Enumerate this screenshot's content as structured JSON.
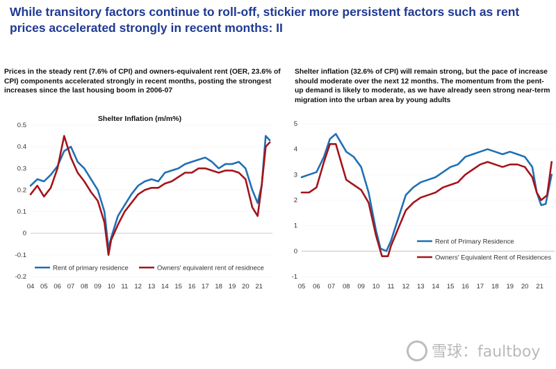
{
  "headline": "While transitory factors continue to roll-off, stickier more persistent factors such as rent prices accelerated strongly in recent months: II",
  "left_panel": {
    "description": "Prices in the steady rent (7.6% of CPI) and owners-equivalent rent (OER, 23.6% of CPI) components accelerated strongly in recent months, posting the strongest increases since the last housing boom in 2006-07"
  },
  "right_panel": {
    "description": "Shelter inflation (32.6% of CPI) will remain strong, but the pace of increase should moderate over the next 12 months. The momentum from the pent-up demand is likely to moderate, as we have already seen strong near-term migration into the urban area by young adults"
  },
  "watermark": "雪球：faultboy",
  "colors": {
    "blue": "#1f6fb5",
    "red": "#a3141b",
    "headline": "#1f3a93"
  },
  "chart_data": [
    {
      "type": "line",
      "title": "Shelter Inflation (m/m%)",
      "xlabel": "",
      "ylabel": "",
      "x_range": [
        2004,
        2022
      ],
      "ylim": [
        -0.2,
        0.5
      ],
      "y_ticks": [
        -0.2,
        -0.1,
        0,
        0.1,
        0.2,
        0.3,
        0.4,
        0.5
      ],
      "x_ticks": [
        "04",
        "05",
        "06",
        "07",
        "08",
        "09",
        "10",
        "11",
        "12",
        "13",
        "14",
        "15",
        "16",
        "17",
        "18",
        "19",
        "20",
        "21"
      ],
      "legend_position": "bottom",
      "series": [
        {
          "name": "Rent of primary residence",
          "color": "#1f6fb5",
          "x": [
            2004.0,
            2004.5,
            2005.0,
            2005.5,
            2006.0,
            2006.5,
            2007.0,
            2007.5,
            2008.0,
            2008.5,
            2009.0,
            2009.5,
            2009.8,
            2010.0,
            2010.5,
            2011.0,
            2011.5,
            2012.0,
            2012.5,
            2013.0,
            2013.5,
            2014.0,
            2014.5,
            2015.0,
            2015.5,
            2016.0,
            2016.5,
            2017.0,
            2017.5,
            2018.0,
            2018.5,
            2019.0,
            2019.5,
            2020.0,
            2020.5,
            2020.9,
            2021.2,
            2021.5,
            2021.8
          ],
          "values": [
            0.22,
            0.25,
            0.24,
            0.27,
            0.31,
            0.38,
            0.4,
            0.33,
            0.3,
            0.25,
            0.2,
            0.1,
            -0.07,
            -0.02,
            0.08,
            0.13,
            0.18,
            0.22,
            0.24,
            0.25,
            0.24,
            0.28,
            0.29,
            0.3,
            0.32,
            0.33,
            0.34,
            0.35,
            0.33,
            0.3,
            0.32,
            0.32,
            0.33,
            0.3,
            0.2,
            0.14,
            0.22,
            0.45,
            0.43
          ]
        },
        {
          "name": "Owners' equivalent rent of residnece",
          "color": "#a3141b",
          "x": [
            2004.0,
            2004.5,
            2005.0,
            2005.5,
            2006.0,
            2006.5,
            2007.0,
            2007.5,
            2008.0,
            2008.5,
            2009.0,
            2009.5,
            2009.8,
            2010.0,
            2010.5,
            2011.0,
            2011.5,
            2012.0,
            2012.5,
            2013.0,
            2013.5,
            2014.0,
            2014.5,
            2015.0,
            2015.5,
            2016.0,
            2016.5,
            2017.0,
            2017.5,
            2018.0,
            2018.5,
            2019.0,
            2019.5,
            2020.0,
            2020.5,
            2020.9,
            2021.2,
            2021.5,
            2021.8
          ],
          "values": [
            0.18,
            0.22,
            0.17,
            0.21,
            0.3,
            0.45,
            0.35,
            0.28,
            0.24,
            0.19,
            0.15,
            0.05,
            -0.1,
            -0.03,
            0.04,
            0.1,
            0.14,
            0.18,
            0.2,
            0.21,
            0.21,
            0.23,
            0.24,
            0.26,
            0.28,
            0.28,
            0.3,
            0.3,
            0.29,
            0.28,
            0.29,
            0.29,
            0.28,
            0.25,
            0.12,
            0.08,
            0.22,
            0.4,
            0.42
          ]
        }
      ]
    },
    {
      "type": "line",
      "title": "",
      "xlabel": "",
      "ylabel": "",
      "x_range": [
        2005,
        2022
      ],
      "ylim": [
        -1,
        5
      ],
      "y_ticks": [
        -1,
        0,
        1,
        2,
        3,
        4,
        5
      ],
      "x_ticks": [
        "05",
        "06",
        "07",
        "08",
        "09",
        "10",
        "11",
        "12",
        "13",
        "14",
        "15",
        "16",
        "17",
        "18",
        "19",
        "20",
        "21"
      ],
      "legend_position": "bottom-right",
      "series": [
        {
          "name": "Rent of Primary Residence",
          "color": "#1f6fb5",
          "x": [
            2005.0,
            2005.5,
            2006.0,
            2006.5,
            2006.9,
            2007.3,
            2007.7,
            2008.0,
            2008.5,
            2009.0,
            2009.5,
            2010.0,
            2010.3,
            2010.7,
            2011.0,
            2011.5,
            2012.0,
            2012.5,
            2013.0,
            2013.5,
            2014.0,
            2014.5,
            2015.0,
            2015.5,
            2016.0,
            2016.5,
            2017.0,
            2017.5,
            2018.0,
            2018.5,
            2019.0,
            2019.5,
            2020.0,
            2020.5,
            2020.8,
            2021.1,
            2021.4,
            2021.8
          ],
          "values": [
            2.9,
            3.0,
            3.1,
            3.7,
            4.4,
            4.6,
            4.2,
            3.9,
            3.7,
            3.3,
            2.3,
            0.8,
            0.1,
            0.0,
            0.4,
            1.3,
            2.2,
            2.5,
            2.7,
            2.8,
            2.9,
            3.1,
            3.3,
            3.4,
            3.7,
            3.8,
            3.9,
            4.0,
            3.9,
            3.8,
            3.9,
            3.8,
            3.7,
            3.3,
            2.3,
            1.8,
            1.85,
            3.0
          ]
        },
        {
          "name": "Owners' Equivalent Rent of Residences",
          "color": "#a3141b",
          "x": [
            2005.0,
            2005.5,
            2006.0,
            2006.5,
            2006.9,
            2007.3,
            2007.7,
            2008.0,
            2008.5,
            2009.0,
            2009.5,
            2010.0,
            2010.4,
            2010.8,
            2011.0,
            2011.5,
            2012.0,
            2012.5,
            2013.0,
            2013.5,
            2014.0,
            2014.5,
            2015.0,
            2015.5,
            2016.0,
            2016.5,
            2017.0,
            2017.5,
            2018.0,
            2018.5,
            2019.0,
            2019.5,
            2020.0,
            2020.5,
            2020.8,
            2021.1,
            2021.5,
            2021.8
          ],
          "values": [
            2.3,
            2.3,
            2.5,
            3.5,
            4.2,
            4.2,
            3.4,
            2.8,
            2.6,
            2.4,
            1.9,
            0.6,
            -0.2,
            -0.2,
            0.2,
            0.9,
            1.6,
            1.9,
            2.1,
            2.2,
            2.3,
            2.5,
            2.6,
            2.7,
            3.0,
            3.2,
            3.4,
            3.5,
            3.4,
            3.3,
            3.4,
            3.4,
            3.3,
            2.9,
            2.3,
            2.0,
            2.2,
            3.5
          ]
        }
      ]
    }
  ]
}
